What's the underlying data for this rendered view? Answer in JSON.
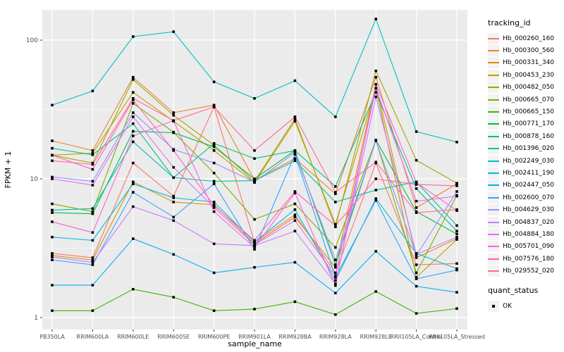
{
  "figure": {
    "background": "#FFFFFF",
    "panel_background": "#EBEBEB",
    "grid_color": "#FFFFFF",
    "tick_label_color": "#4D4D4D",
    "axis_title_color": "#000000",
    "point_color": "#000000"
  },
  "axes": {
    "x_title": "sample_name",
    "y_title": "FPKM + 1",
    "y_tick_labels": [
      "1",
      "10",
      "100"
    ]
  },
  "legend": {
    "tracking_title": "tracking_id",
    "quant_title": "quant_status",
    "quant_items": [
      {
        "label": "OK",
        "marker": "black-square",
        "color": "#000000"
      }
    ]
  },
  "chart_data": {
    "type": "line",
    "title": "",
    "xlabel": "sample_name",
    "ylabel": "FPKM + 1",
    "y_axis": {
      "scale": "log10",
      "major_ticks": [
        1,
        10,
        100
      ],
      "minor_gridlines": [
        3.162,
        31.62
      ],
      "range_approx": [
        0.8,
        170
      ]
    },
    "legend_position": "right",
    "grid": true,
    "point_marker": {
      "shape": "square",
      "color": "#000000",
      "meaning": "quant_status = OK"
    },
    "categories": [
      "PB350LA",
      "RRIM600LA",
      "RRIM600LE",
      "RRIM600SE",
      "RRIM600PE",
      "RRIM901LA",
      "RRIM928BA",
      "RRIM928LA",
      "RRIM928LE",
      "RRII105LA_Control",
      "RRII105LA_Stressed"
    ],
    "series": [
      {
        "name": "Hb_000260_160",
        "color": "#F8766D",
        "values": [
          2.9,
          2.7,
          13,
          7.5,
          33,
          3.5,
          5.5,
          2.1,
          13,
          2.4,
          2.45
        ]
      },
      {
        "name": "Hb_000300_560",
        "color": "#EA8331",
        "values": [
          18.8,
          16,
          54,
          30,
          34,
          9.8,
          14,
          7.8,
          54,
          6.2,
          9.2
        ]
      },
      {
        "name": "Hb_000331_340",
        "color": "#D89000",
        "values": [
          2.8,
          2.6,
          9.5,
          6.8,
          6.5,
          3.4,
          5.3,
          2.3,
          48,
          2.7,
          3.7
        ]
      },
      {
        "name": "Hb_000453_230",
        "color": "#C09B00",
        "values": [
          14.8,
          15.3,
          42,
          26,
          16,
          9.4,
          26,
          4.7,
          45,
          1.95,
          3.65
        ]
      },
      {
        "name": "Hb_000482_050",
        "color": "#A3A500",
        "values": [
          14.8,
          13,
          52,
          28.7,
          17.5,
          9.6,
          27,
          4.5,
          60,
          13.6,
          9.3
        ]
      },
      {
        "name": "Hb_000665_070",
        "color": "#7CAE00",
        "values": [
          6.6,
          5.8,
          35,
          21.7,
          11,
          5.1,
          6.6,
          3.2,
          19,
          2.1,
          7.6
        ]
      },
      {
        "name": "Hb_000665_150",
        "color": "#39B600",
        "values": [
          1.12,
          1.12,
          1.6,
          1.4,
          1.12,
          1.15,
          1.3,
          1.05,
          1.54,
          1.07,
          1.16
        ]
      },
      {
        "name": "Hb_000771_170",
        "color": "#00BB4E",
        "values": [
          5.7,
          5.6,
          22,
          21.5,
          17,
          10,
          16,
          2.4,
          19,
          5.8,
          4.0
        ]
      },
      {
        "name": "Hb_000878_160",
        "color": "#00BF7D",
        "values": [
          16.6,
          14.9,
          25,
          10.2,
          18,
          14,
          16,
          8.8,
          42,
          8.5,
          4.2
        ]
      },
      {
        "name": "Hb_001396_020",
        "color": "#00C1A3",
        "values": [
          5.95,
          6.1,
          18.5,
          10.2,
          9.6,
          9.7,
          13.5,
          6.8,
          8.3,
          9.5,
          4.6
        ]
      },
      {
        "name": "Hb_002249_030",
        "color": "#00BFC4",
        "values": [
          34,
          43,
          106,
          115,
          50,
          38,
          51,
          28,
          142,
          21.9,
          18.4
        ]
      },
      {
        "name": "Hb_002411_190",
        "color": "#00BAE0",
        "values": [
          3.8,
          3.6,
          9.2,
          7.3,
          6.8,
          3.5,
          6.0,
          1.85,
          7.2,
          2.9,
          2.25
        ]
      },
      {
        "name": "Hb_002447_050",
        "color": "#00B0F6",
        "values": [
          1.71,
          1.71,
          3.7,
          2.85,
          2.1,
          2.3,
          2.5,
          1.5,
          3.0,
          1.68,
          1.52
        ]
      },
      {
        "name": "Hb_002600_070",
        "color": "#35A2FF",
        "values": [
          2.6,
          2.4,
          8.0,
          5.3,
          9.2,
          3.1,
          15,
          1.95,
          7.0,
          1.9,
          2.2
        ]
      },
      {
        "name": "Hb_004629_030",
        "color": "#9590FF",
        "values": [
          10.3,
          9.6,
          30,
          16.3,
          13,
          9.5,
          15.5,
          2.6,
          18.8,
          2.8,
          8.1
        ]
      },
      {
        "name": "Hb_004837_020",
        "color": "#C77CFF",
        "values": [
          2.73,
          2.5,
          6.3,
          5.0,
          3.4,
          3.3,
          4.2,
          1.75,
          39,
          2.85,
          3.8
        ]
      },
      {
        "name": "Hb_004884_180",
        "color": "#E76BF3",
        "values": [
          10,
          9.0,
          28,
          12.1,
          6.2,
          3.35,
          5.0,
          2.0,
          45,
          6.9,
          7.5
        ]
      },
      {
        "name": "Hb_005701_090",
        "color": "#FA62DB",
        "values": [
          4.9,
          4.1,
          20.4,
          26.3,
          5.8,
          3.2,
          7.9,
          1.7,
          48,
          9.4,
          5.9
        ]
      },
      {
        "name": "Hb_007576_180",
        "color": "#FF62BC",
        "values": [
          14.8,
          11.7,
          37,
          16,
          6.4,
          3.6,
          8.1,
          4.6,
          10,
          9.1,
          8.9
        ]
      },
      {
        "name": "Hb_029552_020",
        "color": "#FF6A98",
        "values": [
          13.5,
          12.7,
          38,
          26.3,
          33,
          16,
          28,
          8.0,
          13.2,
          5.7,
          6.0
        ]
      }
    ]
  }
}
